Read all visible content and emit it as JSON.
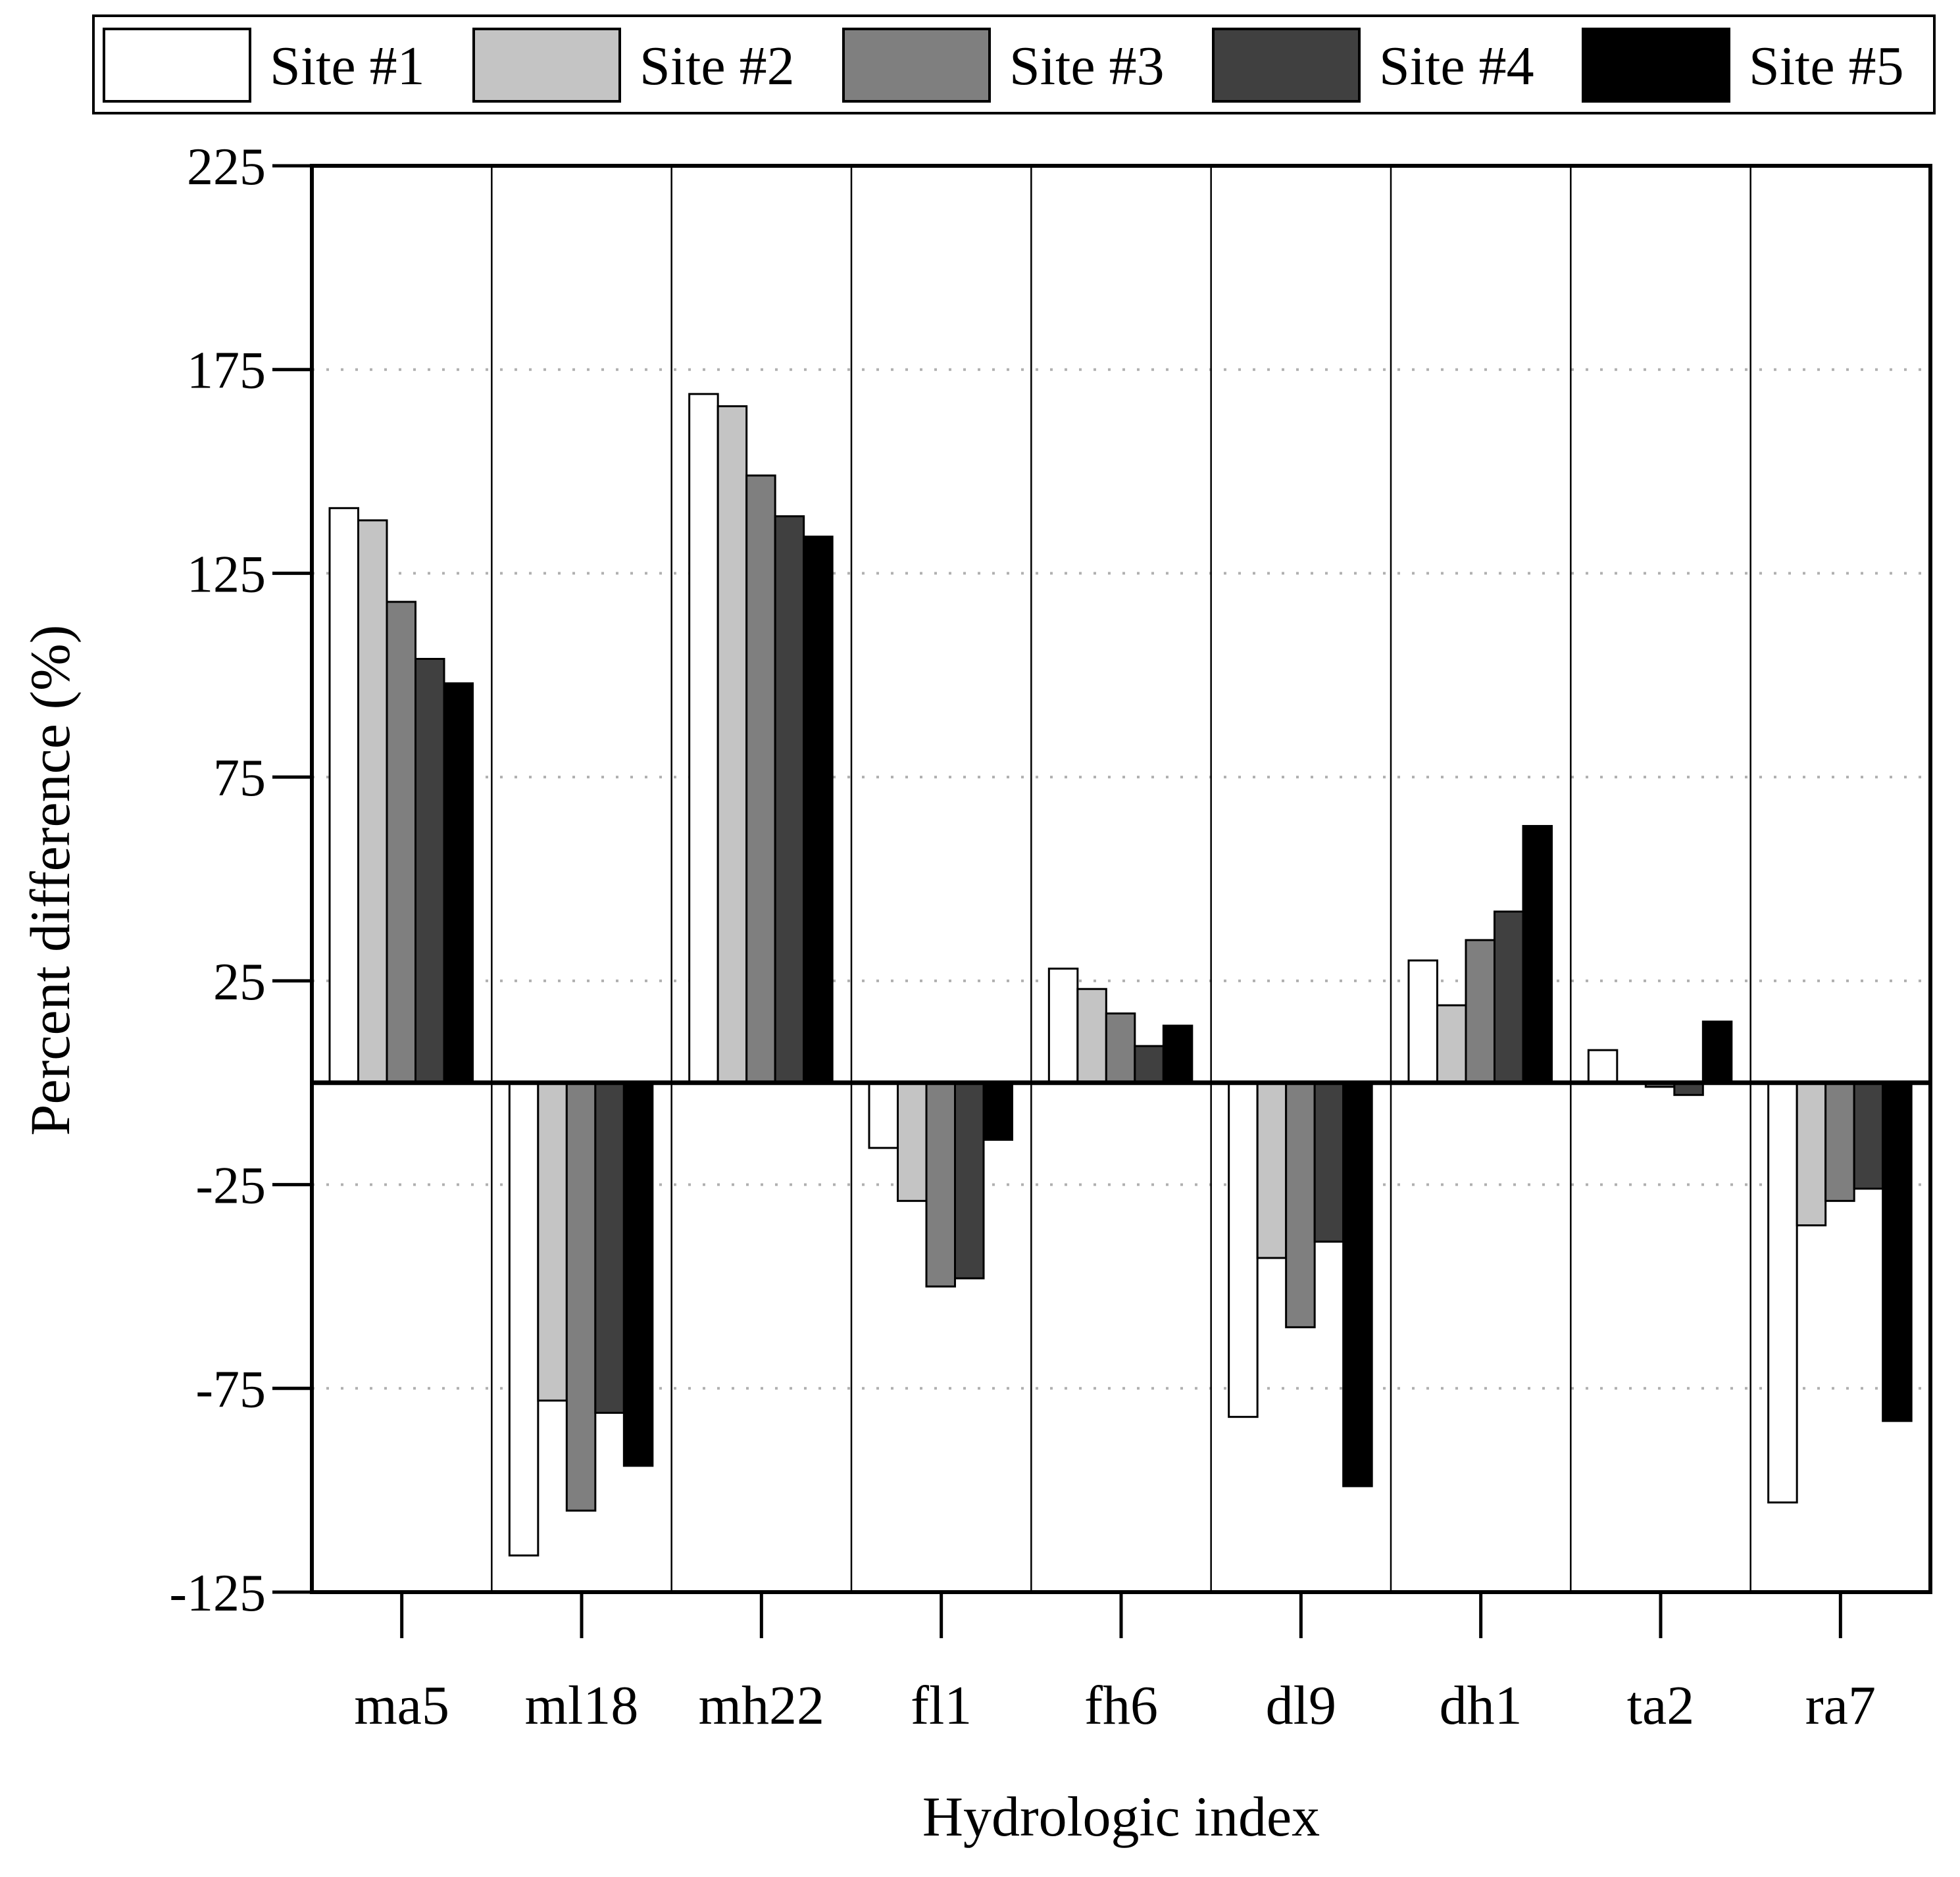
{
  "chart_data": {
    "type": "bar",
    "xlabel": "Hydrologic index",
    "ylabel": "Percent difference (%)",
    "ylim": [
      -125,
      225
    ],
    "yticks": [
      -125,
      -75,
      -25,
      25,
      75,
      125,
      175,
      225
    ],
    "yticks_labels": [
      "-125",
      "-75",
      "-25",
      "25",
      "75",
      "125",
      "175",
      "225"
    ],
    "grid": "horizontal dotted",
    "legend_position": "top",
    "categories": [
      "ma5",
      "ml18",
      "mh22",
      "fl1",
      "fh6",
      "dl9",
      "dh1",
      "ta2",
      "ra7"
    ],
    "series": [
      {
        "name": "Site #1",
        "color": "#ffffff",
        "values": [
          141,
          -116,
          169,
          -16,
          28,
          -82,
          30,
          8,
          -103
        ]
      },
      {
        "name": "Site #2",
        "color": "#c4c4c4",
        "values": [
          138,
          -78,
          166,
          -29,
          23,
          -43,
          19,
          0,
          -35
        ]
      },
      {
        "name": "Site #3",
        "color": "#7f7f7f",
        "values": [
          118,
          -105,
          149,
          -50,
          17,
          -60,
          35,
          -1,
          -29
        ]
      },
      {
        "name": "Site #4",
        "color": "#404040",
        "values": [
          104,
          -81,
          139,
          -48,
          9,
          -39,
          42,
          -3,
          -26
        ]
      },
      {
        "name": "Site #5",
        "color": "#000000",
        "values": [
          98,
          -94,
          134,
          -14,
          14,
          -99,
          63,
          15,
          -83
        ]
      }
    ]
  }
}
